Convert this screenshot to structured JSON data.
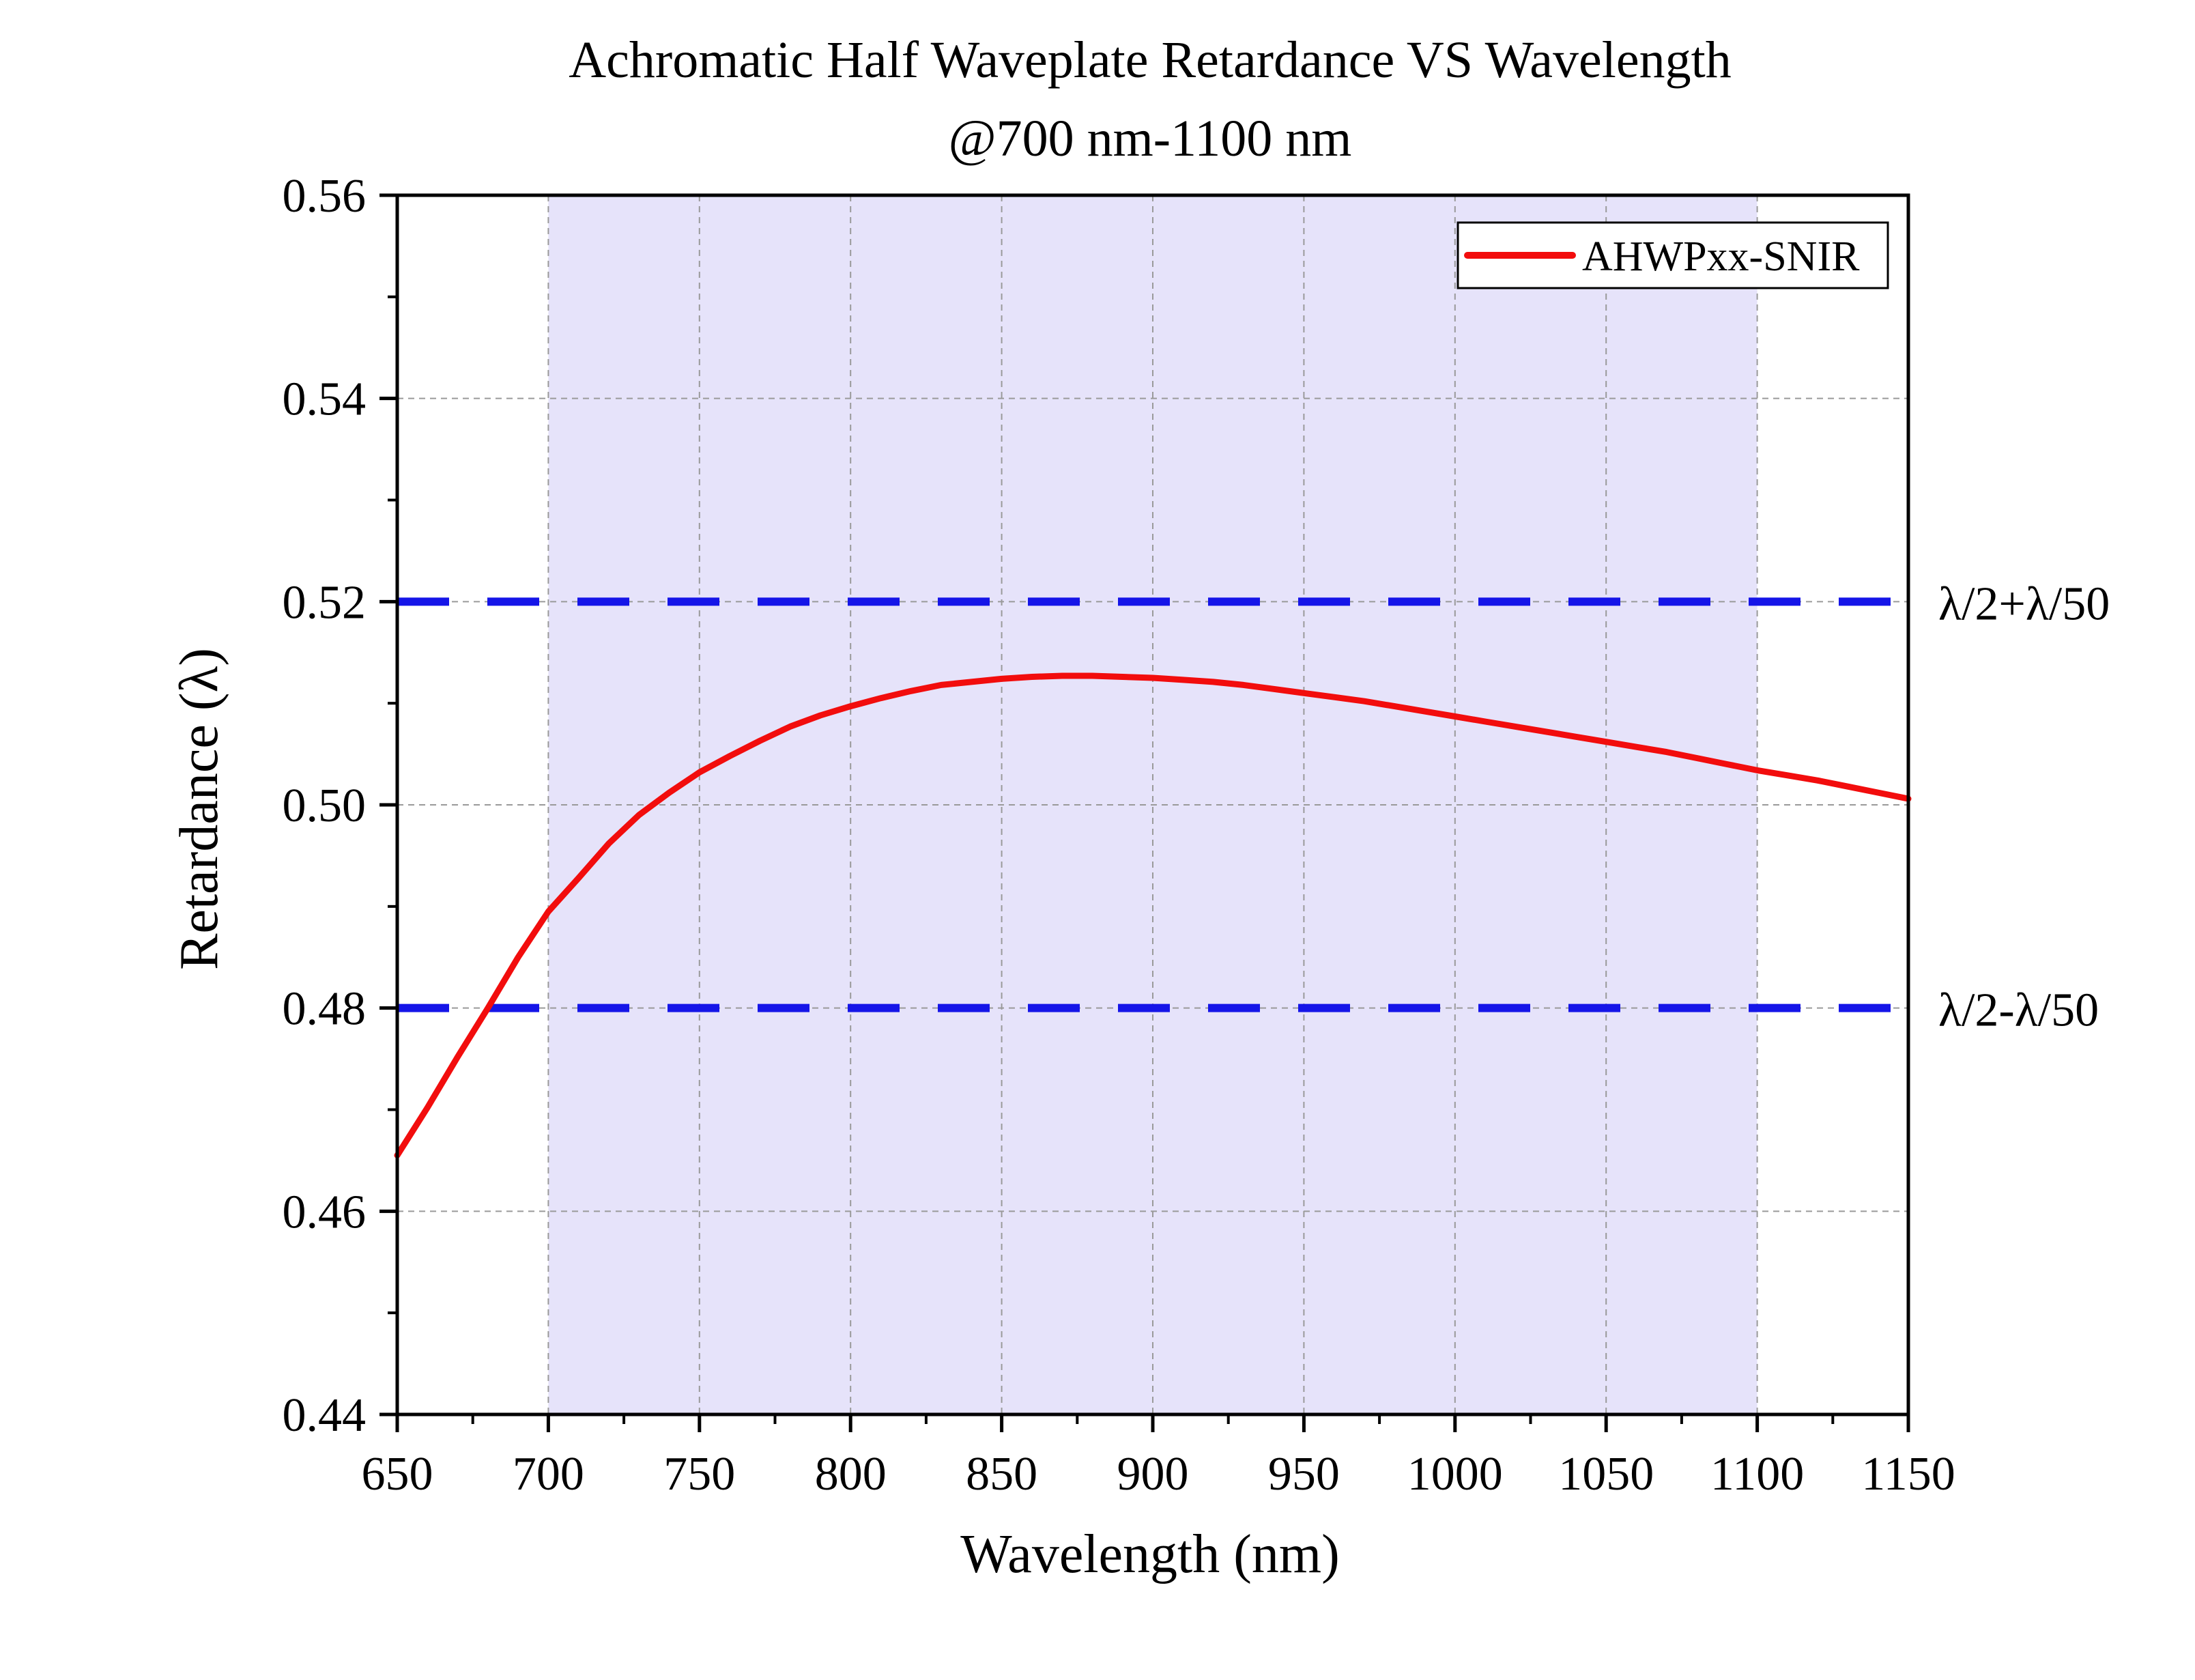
{
  "chart_data": {
    "type": "line",
    "title_line1": "Achromatic Half Waveplate Retardance VS Wavelength",
    "title_line2": "@700 nm-1100 nm",
    "xlabel": "Wavelength (nm)",
    "ylabel": "Retardance (λ)",
    "xlim": [
      650,
      1150
    ],
    "ylim": [
      0.44,
      0.56
    ],
    "xticks": [
      650,
      700,
      750,
      800,
      850,
      900,
      950,
      1000,
      1050,
      1100,
      1150
    ],
    "xtick_labels": [
      "650",
      "700",
      "750",
      "800",
      "850",
      "900",
      "950",
      "1000",
      "1050",
      "1100",
      "1150"
    ],
    "yticks": [
      0.44,
      0.46,
      0.48,
      0.5,
      0.52,
      0.54,
      0.56
    ],
    "ytick_labels": [
      "0.44",
      "0.46",
      "0.48",
      "0.50",
      "0.52",
      "0.54",
      "0.56"
    ],
    "grid": true,
    "legend_position": "top-right",
    "highlight_band": {
      "x_start": 700,
      "x_end": 1100,
      "color": "#e6e3fa"
    },
    "reference_lines": [
      {
        "y": 0.52,
        "label": "λ/2+λ/50",
        "color": "#1515e8"
      },
      {
        "y": 0.48,
        "label": "λ/2-λ/50",
        "color": "#1515e8"
      }
    ],
    "series": [
      {
        "name": "AHWPxx-SNIR",
        "color": "#f20d0d",
        "x": [
          650,
          660,
          670,
          680,
          690,
          700,
          710,
          720,
          730,
          740,
          750,
          760,
          770,
          780,
          790,
          800,
          810,
          820,
          830,
          840,
          850,
          860,
          870,
          880,
          890,
          900,
          910,
          920,
          930,
          940,
          950,
          960,
          970,
          980,
          990,
          1000,
          1010,
          1020,
          1030,
          1040,
          1050,
          1060,
          1070,
          1080,
          1090,
          1100,
          1110,
          1120,
          1130,
          1140,
          1150
        ],
        "y": [
          0.4655,
          0.4702,
          0.4752,
          0.48,
          0.485,
          0.4895,
          0.4928,
          0.4962,
          0.499,
          0.5012,
          0.5032,
          0.5048,
          0.5063,
          0.5077,
          0.5088,
          0.5097,
          0.5105,
          0.5112,
          0.5118,
          0.5121,
          0.5124,
          0.5126,
          0.5127,
          0.5127,
          0.5126,
          0.5125,
          0.5123,
          0.5121,
          0.5118,
          0.5114,
          0.511,
          0.5106,
          0.5102,
          0.5097,
          0.5092,
          0.5087,
          0.5082,
          0.5077,
          0.5072,
          0.5067,
          0.5062,
          0.5057,
          0.5052,
          0.5046,
          0.504,
          0.5034,
          0.5029,
          0.5024,
          0.5018,
          0.5012,
          0.5006
        ]
      }
    ]
  }
}
